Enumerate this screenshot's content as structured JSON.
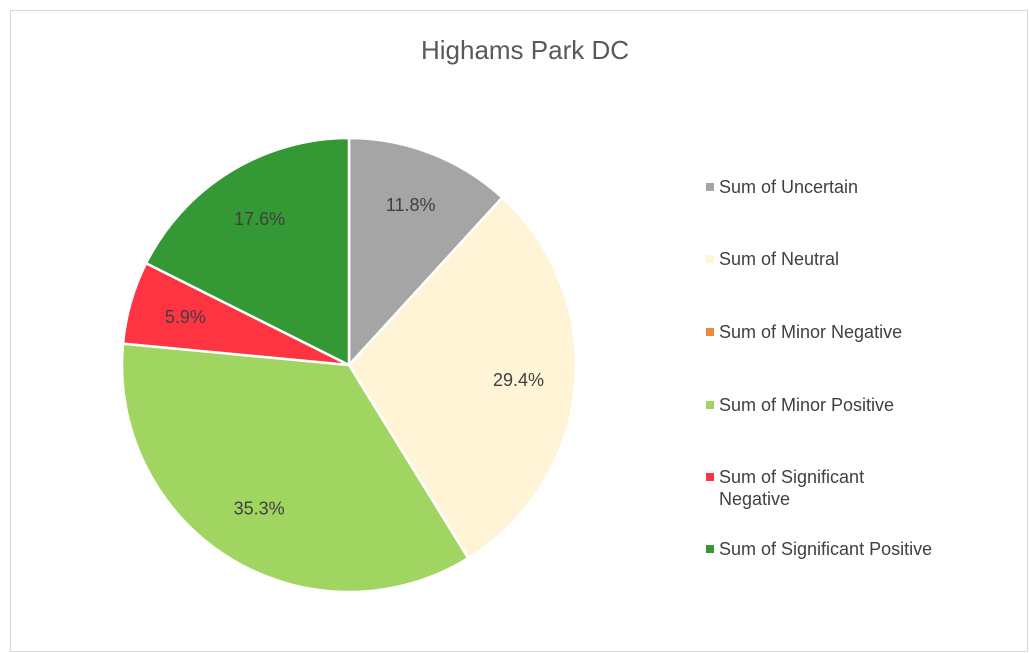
{
  "chart_data": {
    "type": "pie",
    "title": "Highams Park DC",
    "categories": [
      "Sum of Uncertain",
      "Sum of Neutral",
      "Sum of Minor Negative",
      "Sum of Minor Positive",
      "Sum of Significant Negative",
      "Sum of Significant Positive"
    ],
    "values": [
      11.8,
      29.4,
      0,
      35.3,
      5.9,
      17.6
    ],
    "value_labels": [
      "11.8%",
      "29.4%",
      null,
      "35.3%",
      "5.9%",
      "17.6%"
    ],
    "colors": [
      "#a5a5a5",
      "#fff4d6",
      "#f0883e",
      "#a0d561",
      "#ff3443",
      "#349934"
    ],
    "legend": "right"
  }
}
